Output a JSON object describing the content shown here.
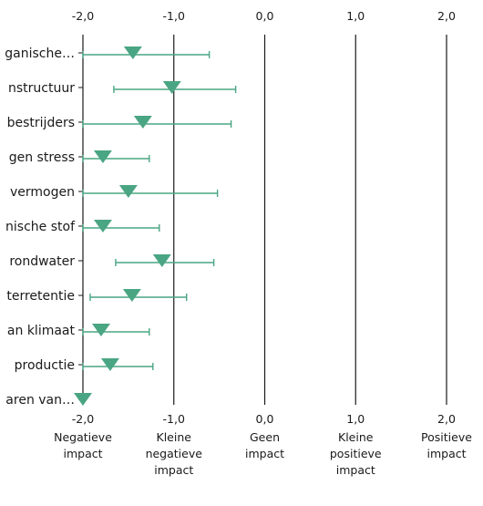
{
  "chart_data": {
    "type": "scatter",
    "orientation": "horizontal",
    "xlim": [
      -2.0,
      2.0
    ],
    "x_ticks": [
      -2.0,
      -1.0,
      0.0,
      1.0,
      2.0
    ],
    "x_tick_labels": [
      "-2,0",
      "-1,0",
      "0,0",
      "1,0",
      "2,0"
    ],
    "x_tick_descriptions": [
      [
        "Negatieve",
        "impact"
      ],
      [
        "Kleine",
        "negatieve",
        "impact"
      ],
      [
        "Geen",
        "impact"
      ],
      [
        "Kleine",
        "positieve",
        "impact"
      ],
      [
        "Positieve",
        "impact"
      ]
    ],
    "grid": "vertical lines at ticks",
    "marker": "triangle-down",
    "series_color": "#4aa583",
    "categories": [
      "ganische…",
      "nstructuur",
      "bestrijders",
      "gen stress",
      "vermogen",
      "nische stof",
      "rondwater",
      "terretentie",
      "an klimaat",
      "productie",
      "aren van…"
    ],
    "mean": [
      -1.45,
      -1.02,
      -1.34,
      -1.78,
      -1.5,
      -1.78,
      -1.13,
      -1.46,
      -1.8,
      -1.7,
      -2.0
    ],
    "lower": [
      -2.0,
      -1.66,
      -2.0,
      -2.0,
      -2.0,
      -2.0,
      -1.64,
      -1.92,
      -2.0,
      -2.0,
      null
    ],
    "upper": [
      -0.61,
      -0.32,
      -0.37,
      -1.27,
      -0.52,
      -1.16,
      -0.56,
      -0.86,
      -1.27,
      -1.23,
      null
    ]
  }
}
